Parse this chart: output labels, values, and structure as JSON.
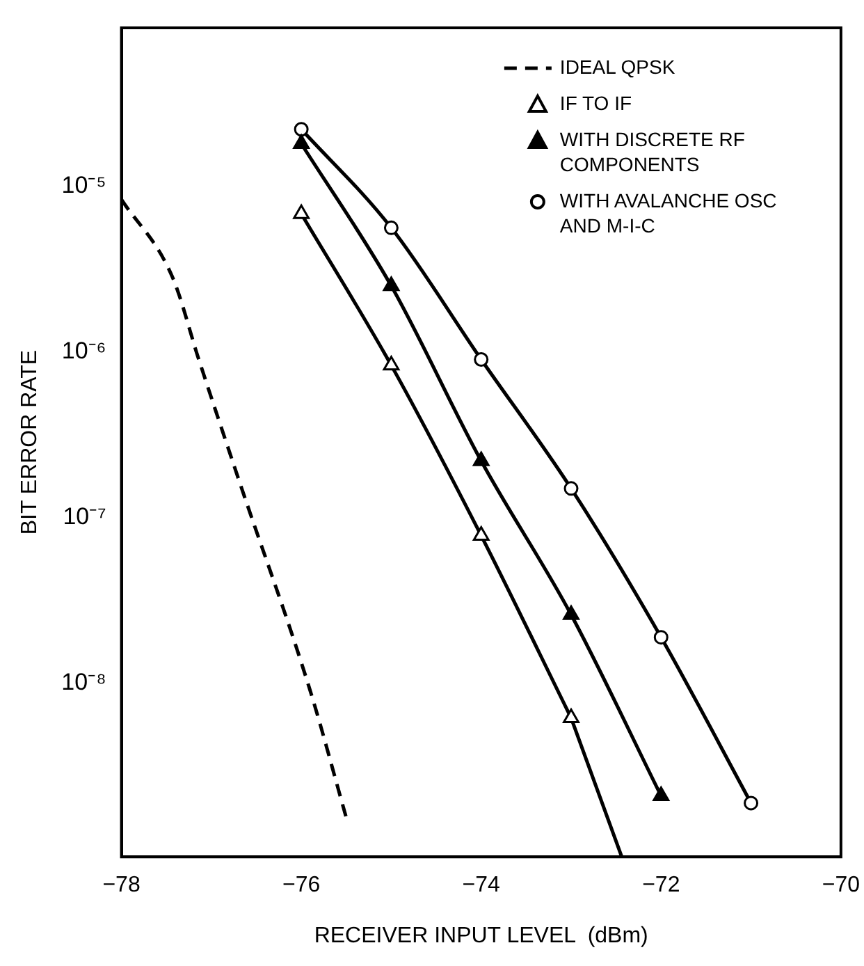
{
  "chart_data": {
    "type": "line",
    "xlabel": "RECEIVER INPUT LEVEL  (dBm)",
    "ylabel": "BIT ERROR RATE",
    "log": "y",
    "grid": false,
    "legend": "top right",
    "line_style": "solid",
    "xlim": [
      -78,
      -70
    ],
    "xticks": [
      -78,
      -76,
      -74,
      -72,
      -70
    ],
    "ylim": [
      9e-10,
      9e-05
    ],
    "yticks": [
      {
        "value": 1e-05,
        "label": "10⁻⁵"
      },
      {
        "value": 1e-06,
        "label": "10⁻⁶"
      },
      {
        "value": 1e-07,
        "label": "10⁻⁷"
      },
      {
        "value": 1e-08,
        "label": "10⁻⁸"
      }
    ],
    "series": [
      {
        "name": "IDEAL QPSK",
        "color": "#000000",
        "line_style": "dashed",
        "marker": "none",
        "x": [
          -78,
          -77.43,
          -77.14,
          -76.68,
          -75.9,
          -75.5
        ],
        "values": [
          8.3e-06,
          2.8e-06,
          9e-07,
          1.6e-07,
          9e-09,
          1.55e-09
        ]
      },
      {
        "name": "IF TO IF",
        "color": "#000000",
        "marker": "triangle",
        "colors": [
          "#ffffff",
          "#ffffff",
          "#ffffff",
          "#ffffff"
        ],
        "x": [
          -76,
          -75,
          -74,
          -73
        ],
        "values": [
          6.8e-06,
          8.3e-07,
          7.8e-08,
          6.2e-09
        ]
      },
      {
        "color": "#000000",
        "marker": "none",
        "x": [
          -73,
          -72.44
        ],
        "values": [
          6.2e-09,
          9.1e-10
        ]
      },
      {
        "name": "WITH DISCRETE RF COMPONENTS",
        "color": "#000000",
        "marker": "triangle",
        "colors": [
          "#000000",
          "#000000",
          "#000000",
          "#000000",
          "#000000"
        ],
        "x": [
          -76,
          -75,
          -74,
          -73,
          -72
        ],
        "values": [
          1.8e-05,
          2.5e-06,
          2.2e-07,
          2.6e-08,
          2.1e-09
        ]
      },
      {
        "name": "WITH AVALANCHE OSC AND M-I-C",
        "color": "#000000",
        "marker": "circle",
        "colors": [
          "#ffffff",
          "#ffffff",
          "#ffffff",
          "#ffffff",
          "#ffffff",
          "#ffffff"
        ],
        "x": [
          -76,
          -75,
          -74,
          -73,
          -72,
          -71
        ],
        "values": [
          2.2e-05,
          5.6e-06,
          9e-07,
          1.5e-07,
          1.9e-08,
          1.9e-09
        ]
      }
    ]
  }
}
